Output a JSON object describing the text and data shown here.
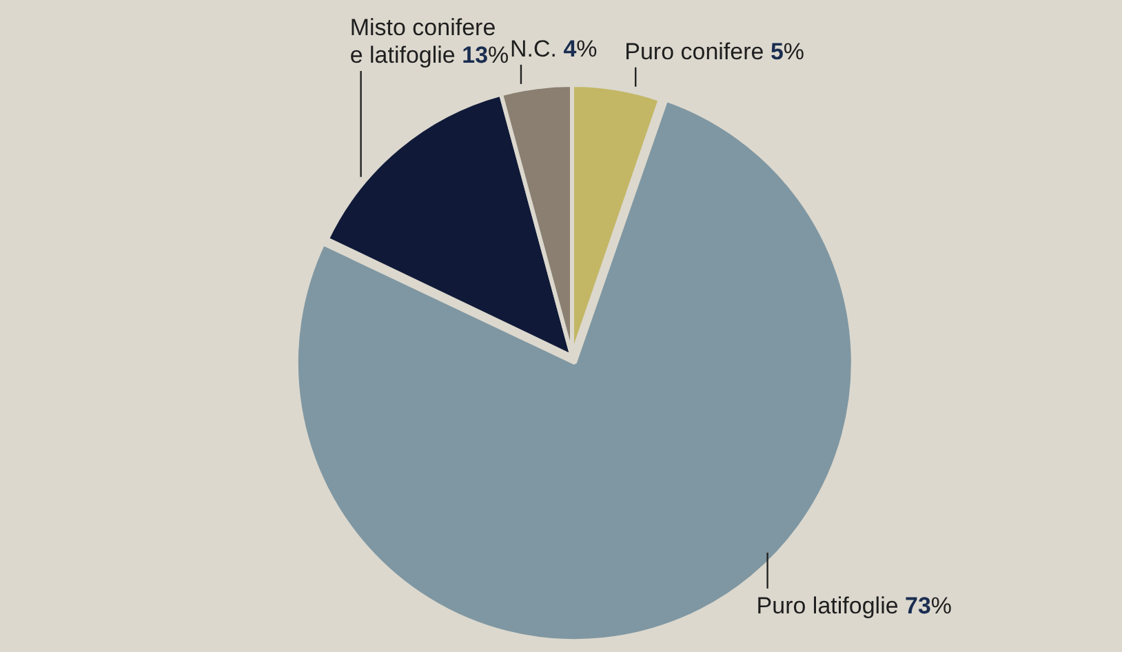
{
  "chart_data": {
    "type": "pie",
    "categories": [
      "Puro conifere",
      "Puro latifoglie",
      "Misto conifere e latifoglie",
      "N.C."
    ],
    "values": [
      5,
      73,
      13,
      4
    ],
    "value_labels": [
      "5%",
      "73%",
      "13%",
      "4%"
    ],
    "colors": [
      "#c3b765",
      "#7f97a2",
      "#101a38",
      "#8a7f70"
    ],
    "legend": false
  }
}
